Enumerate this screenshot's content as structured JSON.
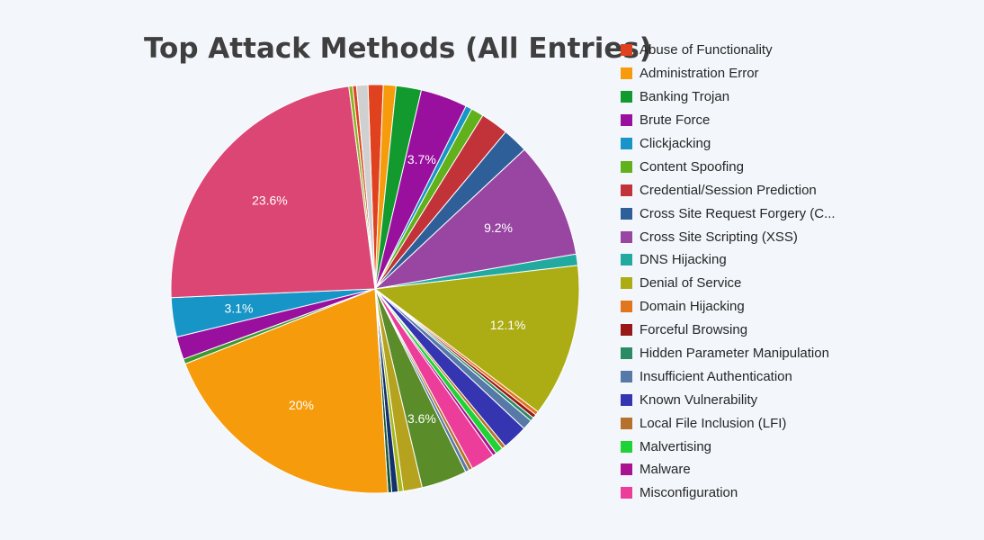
{
  "chart_data": {
    "type": "pie",
    "title": "Top Attack Methods (All Entries)",
    "legend_position": "right",
    "start_angle_deg": -2,
    "legend": [
      {
        "label": "Abuse of Functionality",
        "color": "#e0411e"
      },
      {
        "label": "Administration Error",
        "color": "#f59b0c"
      },
      {
        "label": "Banking Trojan",
        "color": "#139a2f"
      },
      {
        "label": "Brute Force",
        "color": "#9a109e"
      },
      {
        "label": "Clickjacking",
        "color": "#1795c6"
      },
      {
        "label": "Content Spoofing",
        "color": "#60b11b"
      },
      {
        "label": "Credential/Session Prediction",
        "color": "#c23239"
      },
      {
        "label": "Cross Site Request Forgery (C...",
        "color": "#2f5f99"
      },
      {
        "label": "Cross Site Scripting (XSS)",
        "color": "#9946a2"
      },
      {
        "label": "DNS Hijacking",
        "color": "#22aaa1"
      },
      {
        "label": "Denial of Service",
        "color": "#acac14"
      },
      {
        "label": "Domain Hijacking",
        "color": "#e2761c"
      },
      {
        "label": "Forceful Browsing",
        "color": "#981818"
      },
      {
        "label": "Hidden Parameter Manipulation",
        "color": "#2a8b65"
      },
      {
        "label": "Insufficient Authentication",
        "color": "#5779a8"
      },
      {
        "label": "Known Vulnerability",
        "color": "#3535b1"
      },
      {
        "label": "Local File Inclusion (LFI)",
        "color": "#b6722d"
      },
      {
        "label": "Malvertising",
        "color": "#1fd336"
      },
      {
        "label": "Malware",
        "color": "#a9138f"
      },
      {
        "label": "Misconfiguration",
        "color": "#ec3d9a"
      }
    ],
    "slices": [
      {
        "value": 1.2,
        "color": "#e0411e"
      },
      {
        "value": 1.0,
        "color": "#f59b0c"
      },
      {
        "value": 2.0,
        "color": "#139a2f"
      },
      {
        "value": 3.7,
        "color": "#9a109e",
        "label": "3.7%"
      },
      {
        "value": 0.5,
        "color": "#1795c6"
      },
      {
        "value": 1.0,
        "color": "#60b11b"
      },
      {
        "value": 2.2,
        "color": "#c23239"
      },
      {
        "value": 2.0,
        "color": "#2f5f99"
      },
      {
        "value": 9.2,
        "color": "#9946a2",
        "label": "9.2%"
      },
      {
        "value": 0.9,
        "color": "#22aaa1"
      },
      {
        "value": 12.1,
        "color": "#acac14",
        "label": "12.1%"
      },
      {
        "value": 0.3,
        "color": "#e2761c"
      },
      {
        "value": 0.3,
        "color": "#981818"
      },
      {
        "value": 0.3,
        "color": "#2a8b65"
      },
      {
        "value": 0.8,
        "color": "#5779a8"
      },
      {
        "value": 2.0,
        "color": "#3535b1"
      },
      {
        "value": 0.3,
        "color": "#b6722d"
      },
      {
        "value": 0.6,
        "color": "#1fd336"
      },
      {
        "value": 0.3,
        "color": "#a9138f"
      },
      {
        "value": 1.9,
        "color": "#ec3d9a"
      },
      {
        "value": 0.3,
        "color": "#b6722d"
      },
      {
        "value": 0.3,
        "color": "#5779a8"
      },
      {
        "value": 3.6,
        "color": "#5a8c2a",
        "label": "3.6%"
      },
      {
        "value": 1.5,
        "color": "#b5a21e"
      },
      {
        "value": 0.4,
        "color": "#a6b91c"
      },
      {
        "value": 0.5,
        "color": "#12306a"
      },
      {
        "value": 0.3,
        "color": "#15573a"
      },
      {
        "value": 20.0,
        "color": "#f59b0c",
        "label": "20%"
      },
      {
        "value": 0.4,
        "color": "#3b9a2f"
      },
      {
        "value": 1.8,
        "color": "#9a109e"
      },
      {
        "value": 3.1,
        "color": "#1795c6",
        "label": "3.1%"
      },
      {
        "value": 23.6,
        "color": "#dc4675",
        "label": "23.6%"
      },
      {
        "value": 0.3,
        "color": "#8ab321"
      },
      {
        "value": 0.3,
        "color": "#e0411e"
      },
      {
        "value": 0.9,
        "color": "#d0d0d0"
      }
    ]
  }
}
